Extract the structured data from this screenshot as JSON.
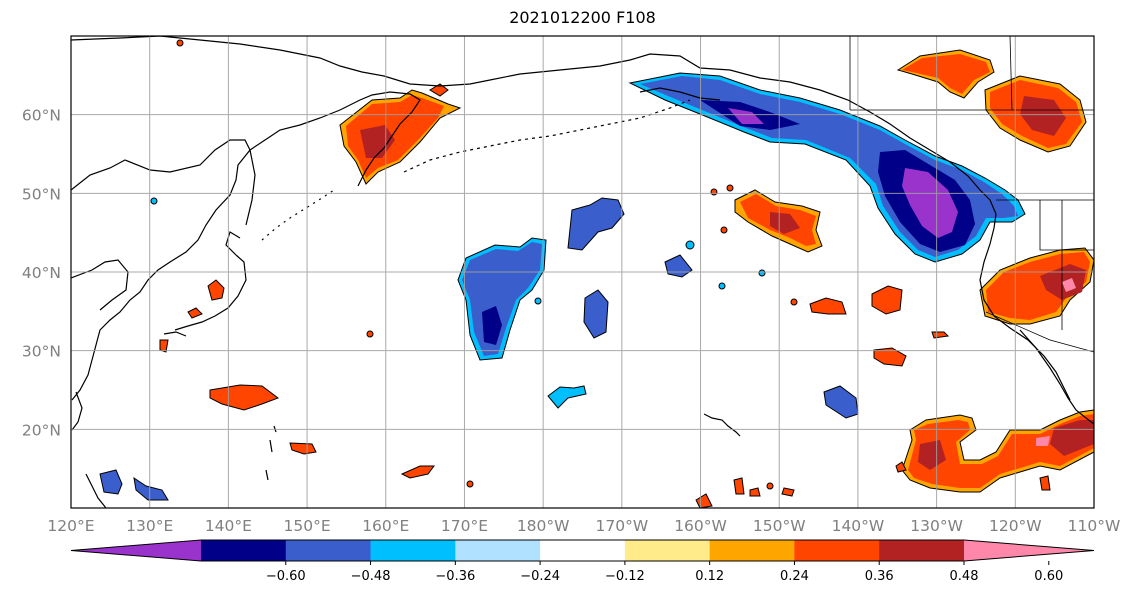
{
  "title": "2021012200 F108",
  "map": {
    "lon_range": [
      120,
      250
    ],
    "lat_range": [
      10,
      70
    ],
    "lat_ticks": [
      {
        "value": 20,
        "label": "20°N"
      },
      {
        "value": 30,
        "label": "30°N"
      },
      {
        "value": 40,
        "label": "40°N"
      },
      {
        "value": 50,
        "label": "50°N"
      },
      {
        "value": 60,
        "label": "60°N"
      }
    ],
    "lon_ticks": [
      {
        "value": 120,
        "label": "120°E"
      },
      {
        "value": 130,
        "label": "130°E"
      },
      {
        "value": 140,
        "label": "140°E"
      },
      {
        "value": 150,
        "label": "150°E"
      },
      {
        "value": 160,
        "label": "160°E"
      },
      {
        "value": 170,
        "label": "170°E"
      },
      {
        "value": 180,
        "label": "180°W"
      },
      {
        "value": 190,
        "label": "170°W"
      },
      {
        "value": 200,
        "label": "160°W"
      },
      {
        "value": 210,
        "label": "150°W"
      },
      {
        "value": 220,
        "label": "140°W"
      },
      {
        "value": 230,
        "label": "130°W"
      },
      {
        "value": 240,
        "label": "120°W"
      },
      {
        "value": 250,
        "label": "110°W"
      }
    ],
    "grid": true
  },
  "colorbar": {
    "segments": [
      "#9933cc",
      "#000088",
      "#3a5fcd",
      "#00bfff",
      "#b0e2ff",
      "#ffffff",
      "#ffeb8a",
      "#ffa500",
      "#ff4500",
      "#b22222",
      "#ff88aa"
    ],
    "tick_labels": [
      "−0.60",
      "−0.48",
      "−0.36",
      "−0.24",
      "−0.12",
      "0.12",
      "0.24",
      "0.36",
      "0.48",
      "0.60"
    ],
    "extend": "both"
  }
}
